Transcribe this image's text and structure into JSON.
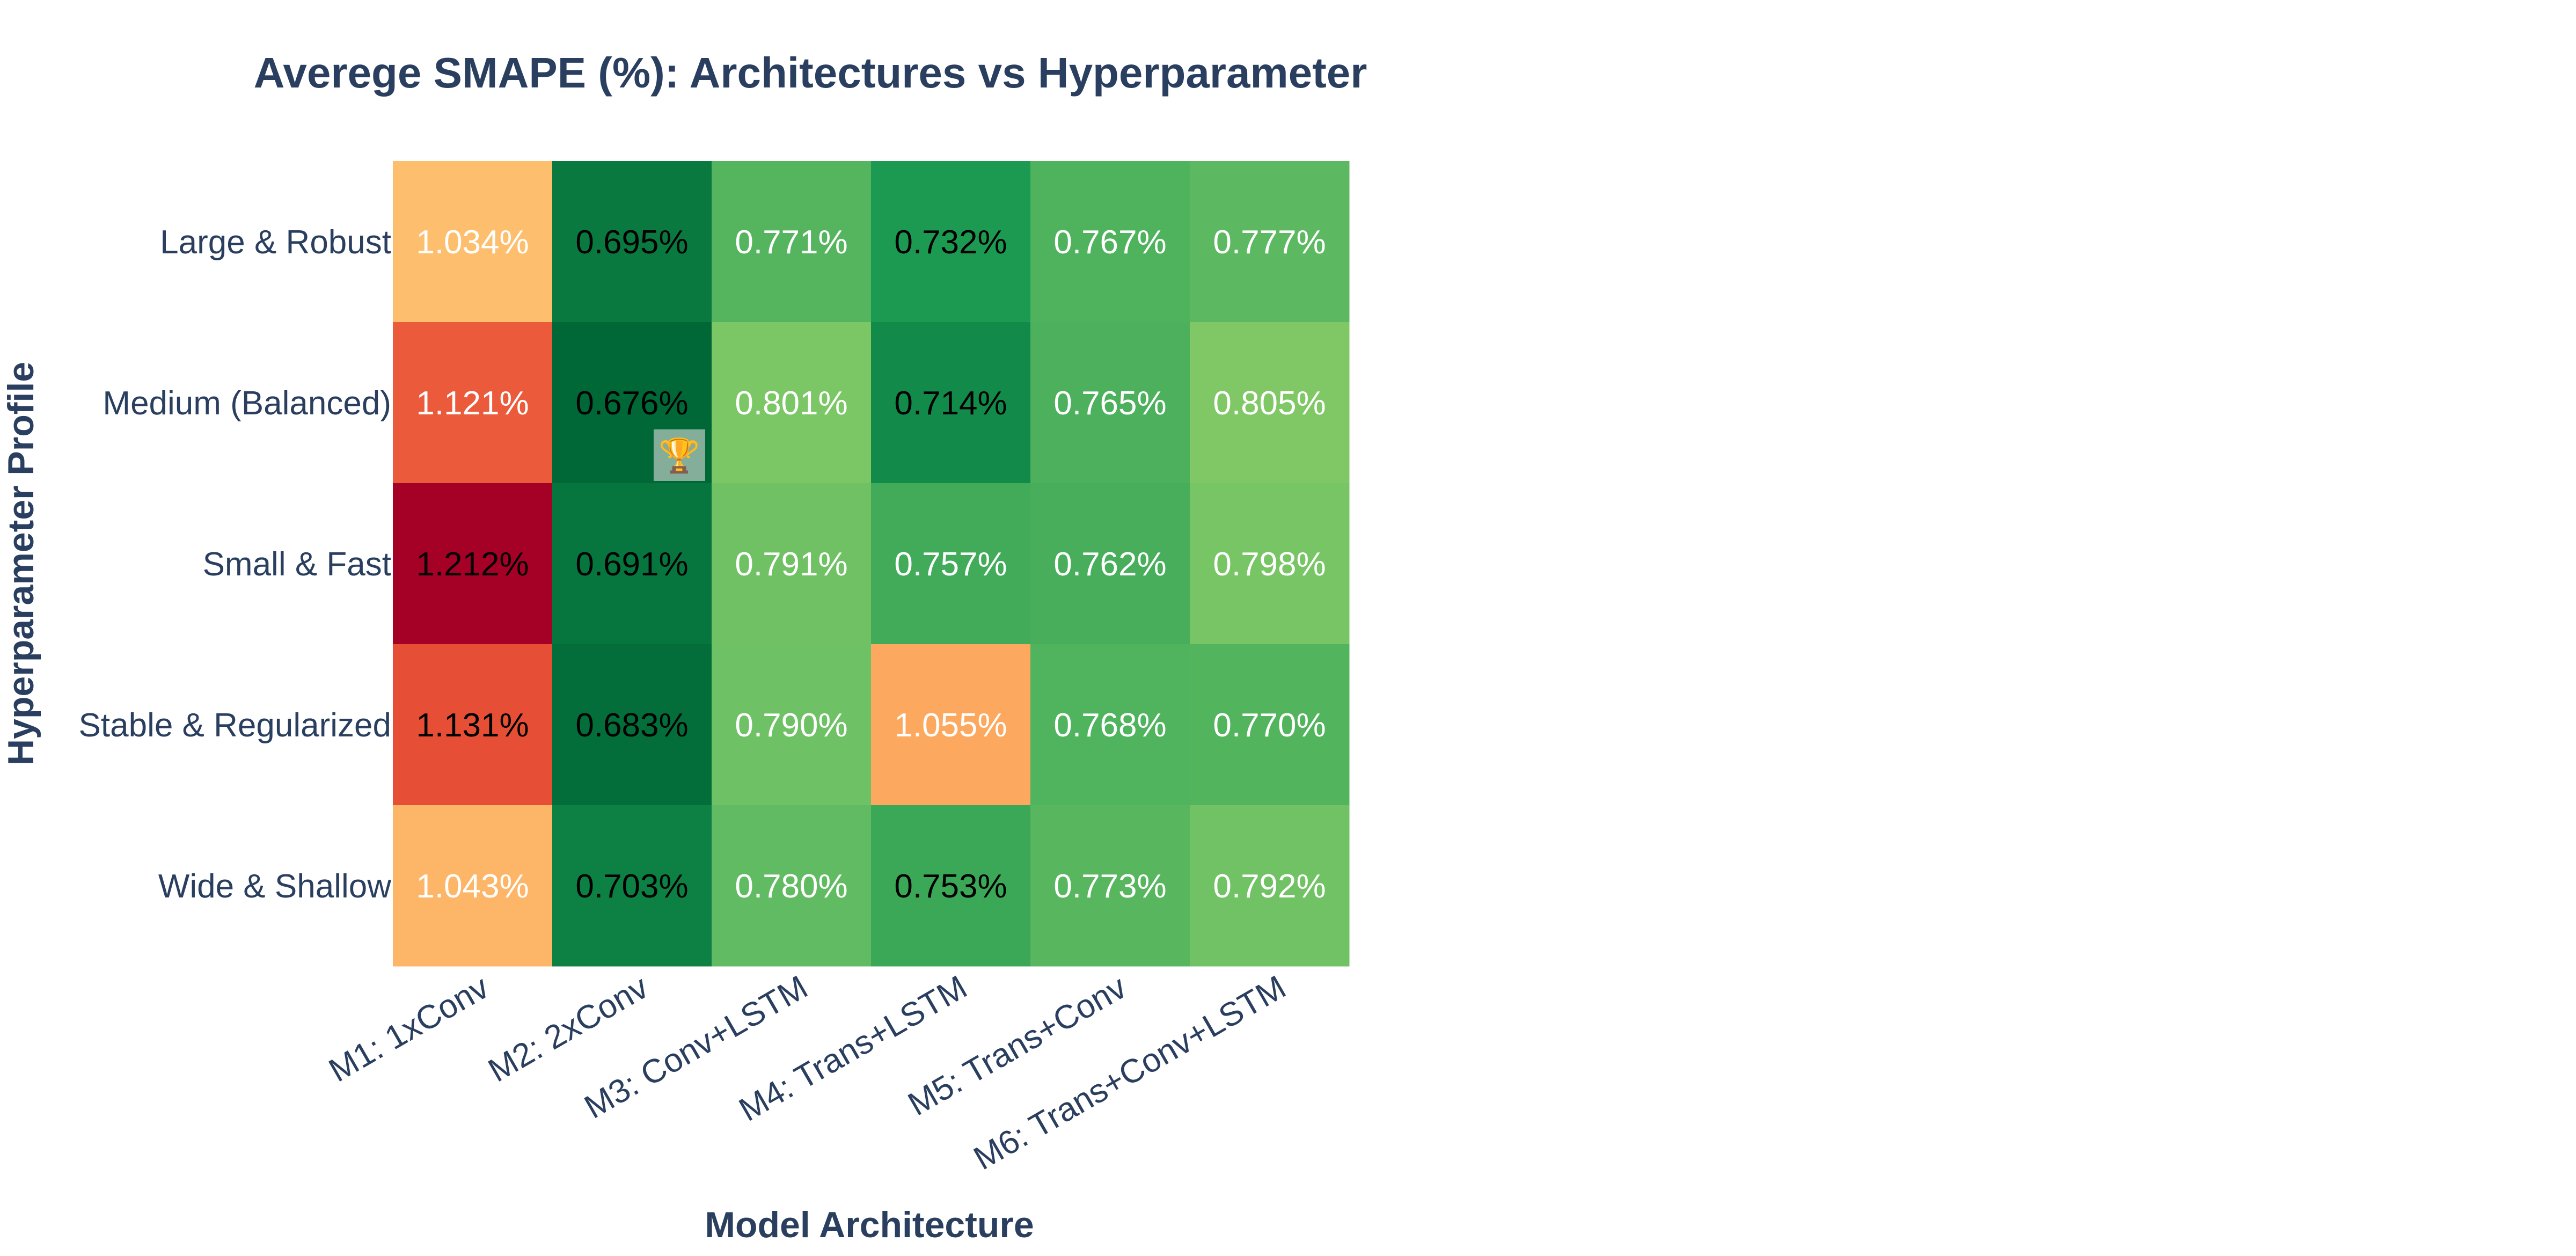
{
  "chart_data": {
    "type": "heatmap",
    "title": "Averege SMAPE (%): Architectures vs Hyperparameter",
    "xlabel": "Model Architecture",
    "ylabel": "Hyperparameter Profile",
    "x_categories": [
      "M1: 1xConv",
      "M2: 2xConv",
      "M3: Conv+LSTM",
      "M4: Trans+LSTM",
      "M5: Trans+Conv",
      "M6: Trans+Conv+LSTM"
    ],
    "y_categories": [
      "Large & Robust",
      "Medium (Balanced)",
      "Small & Fast",
      "Stable & Regularized",
      "Wide & Shallow"
    ],
    "values": [
      [
        1.034,
        0.695,
        0.771,
        0.732,
        0.767,
        0.777
      ],
      [
        1.121,
        0.676,
        0.801,
        0.714,
        0.765,
        0.805
      ],
      [
        1.212,
        0.691,
        0.791,
        0.757,
        0.762,
        0.798
      ],
      [
        1.131,
        0.683,
        0.79,
        1.055,
        0.768,
        0.77
      ],
      [
        1.043,
        0.703,
        0.78,
        0.753,
        0.773,
        0.792
      ]
    ],
    "cell_labels": [
      [
        "1.034%",
        "0.695%",
        "0.771%",
        "0.732%",
        "0.767%",
        "0.777%"
      ],
      [
        "1.121%",
        "0.676%",
        "0.801%",
        "0.714%",
        "0.765%",
        "0.805%"
      ],
      [
        "1.212%",
        "0.691%",
        "0.791%",
        "0.757%",
        "0.762%",
        "0.798%"
      ],
      [
        "1.131%",
        "0.683%",
        "0.790%",
        "1.055%",
        "0.768%",
        "0.770%"
      ],
      [
        "1.043%",
        "0.703%",
        "0.780%",
        "0.753%",
        "0.773%",
        "0.792%"
      ]
    ],
    "colorscale": "RdYlGn reversed (low = dark green, high = dark red)",
    "color_range": [
      0.676,
      1.212
    ],
    "best_marker": {
      "icon": "trophy-icon",
      "glyph": "🏆",
      "row": 1,
      "col": 1
    }
  }
}
